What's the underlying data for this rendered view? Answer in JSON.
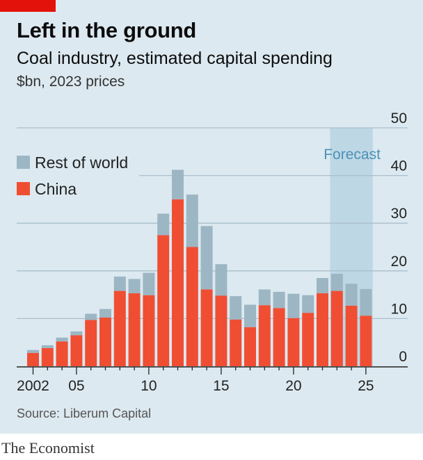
{
  "title": "Left in the ground",
  "subtitle": "Coal industry, estimated capital spending",
  "units": "$bn, 2023 prices",
  "source": "Source: Liberum Capital",
  "brand": "The Economist",
  "colors": {
    "china": "#f04e33",
    "rest_of_world": "#9cb6c4",
    "forecast_band": "#bed7e4",
    "grid": "#a9bfcc",
    "background": "#dce9f0",
    "brand_red": "#e3120b"
  },
  "chart_data": {
    "type": "bar",
    "stacked": true,
    "x": [
      2002,
      2003,
      2004,
      2005,
      2006,
      2007,
      2008,
      2009,
      2010,
      2011,
      2012,
      2013,
      2014,
      2015,
      2016,
      2017,
      2018,
      2019,
      2020,
      2021,
      2022,
      2023,
      2024,
      2025
    ],
    "x_tick_values": [
      2002,
      2005,
      2010,
      2015,
      2020,
      2025
    ],
    "x_tick_labels": [
      "2002",
      "05",
      "10",
      "15",
      "20",
      "25"
    ],
    "series": [
      {
        "name": "China",
        "values": [
          2.8,
          3.8,
          5.2,
          6.5,
          9.7,
          10.2,
          15.8,
          15.3,
          14.9,
          27.5,
          35.0,
          25.0,
          16.1,
          14.8,
          9.8,
          8.2,
          12.8,
          12.2,
          10.1,
          11.2,
          15.3,
          15.8,
          12.7,
          10.6
        ]
      },
      {
        "name": "Rest of world",
        "values": [
          0.6,
          0.6,
          0.8,
          0.8,
          1.3,
          1.8,
          3.0,
          3.0,
          4.7,
          4.5,
          6.2,
          11.0,
          13.3,
          6.6,
          4.9,
          4.7,
          3.3,
          3.4,
          5.1,
          3.7,
          3.2,
          3.6,
          4.6,
          5.6
        ]
      }
    ],
    "ylim": [
      0,
      50
    ],
    "y_ticks": [
      0,
      10,
      20,
      30,
      40,
      50
    ],
    "y_axis_position": "right",
    "grid": true,
    "legend_position": "top-left",
    "forecast": {
      "label": "Forecast",
      "from": 2023,
      "to": 2025
    }
  }
}
